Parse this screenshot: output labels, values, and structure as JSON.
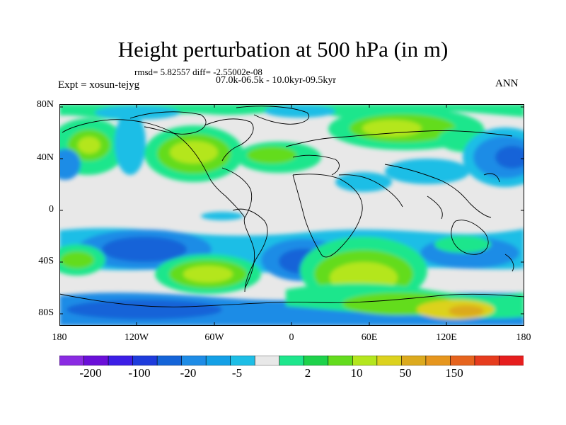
{
  "title": "Height perturbation at 500 hPa (in m)",
  "stats_line": "rmsd= 5.82557 diff= -2.55002e-08",
  "period_line": "07.0k-06.5k - 10.0kyr-09.5kyr",
  "experiment_label": "Expt = xosun-tejyg",
  "season": "ANN",
  "lat_ticks": [
    "80N",
    "40N",
    "0",
    "40S",
    "80S"
  ],
  "lon_ticks": [
    "180",
    "120W",
    "60W",
    "0",
    "60E",
    "120E",
    "180"
  ],
  "colorbar": {
    "colors": [
      "#8a2be2",
      "#6a0fd8",
      "#3c1ee6",
      "#1e3cdc",
      "#1464d8",
      "#1e8ce6",
      "#14a0e6",
      "#1ebee6",
      "#e8e8e8",
      "#1ee68c",
      "#1ed24b",
      "#64dc1e",
      "#b4e61e",
      "#dcd21e",
      "#dcaa1e",
      "#e6961e",
      "#e6641e",
      "#e63c1e",
      "#e61e1e"
    ],
    "labels": [
      "-200",
      "-100",
      "-20",
      "-5",
      "2",
      "10",
      "50",
      "150"
    ]
  },
  "colors": {
    "land_outline": "#000000",
    "zero_band": "#e8e8e8"
  }
}
